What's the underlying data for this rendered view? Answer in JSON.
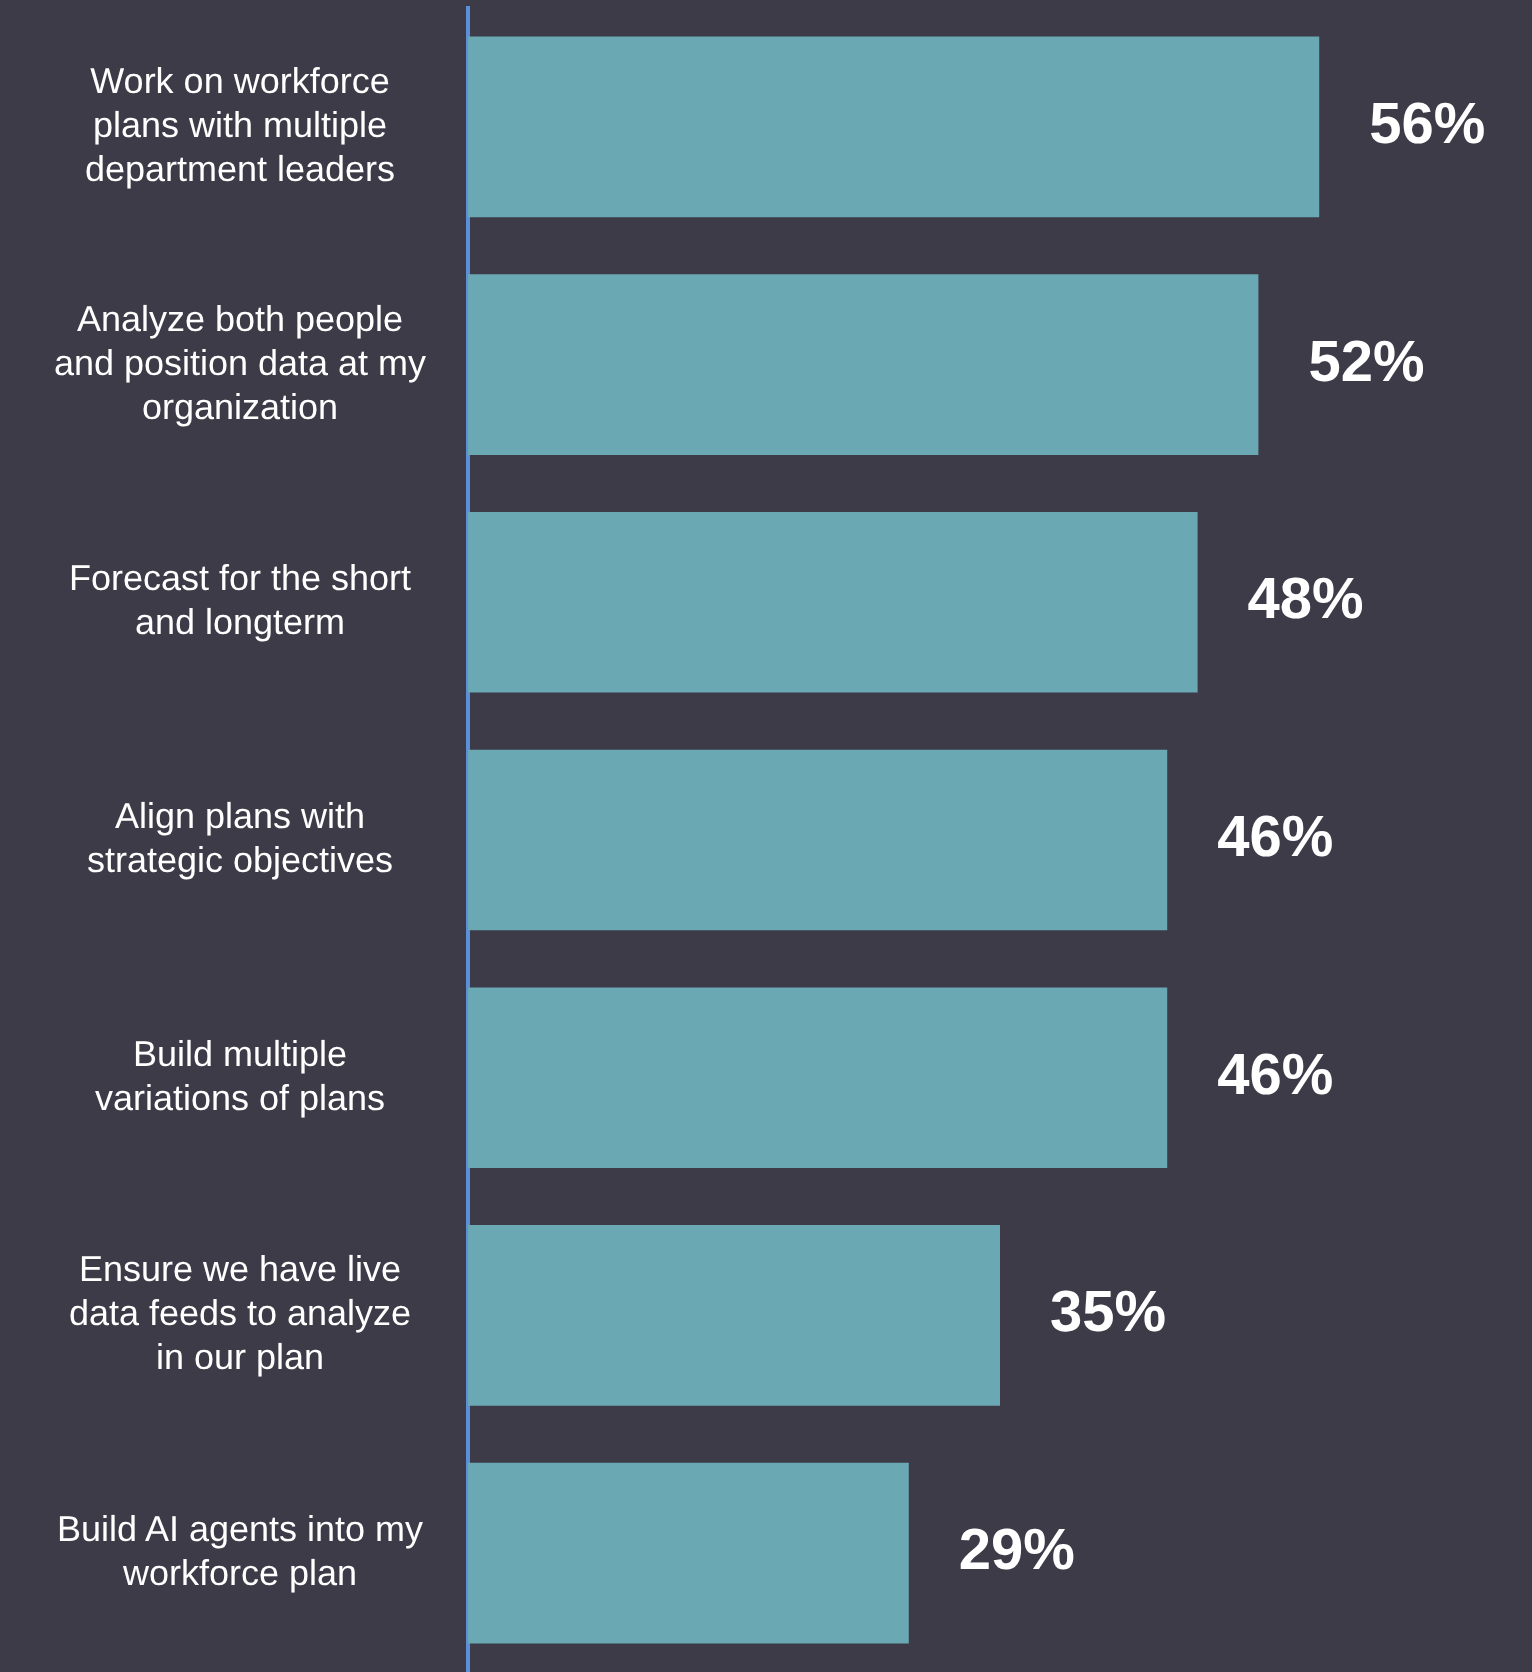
{
  "chart_data": {
    "type": "bar",
    "orientation": "horizontal",
    "categories": [
      "Work on workforce plans with multiple department leaders",
      "Analyze both people and position data at my organization",
      "Forecast for the short and longterm",
      "Align plans with strategic objectives",
      "Build multiple variations of plans",
      "Ensure we have live data feeds to analyze in our plan",
      "Build AI agents into my workforce plan"
    ],
    "values": [
      56,
      52,
      48,
      46,
      46,
      35,
      29
    ],
    "color": "#6aa8b4",
    "data_labels": true,
    "value_labels": [
      "56%",
      "52%",
      "48%",
      "46%",
      "46%",
      "35%",
      "29%"
    ],
    "tick_labels": "y",
    "legend": false
  }
}
